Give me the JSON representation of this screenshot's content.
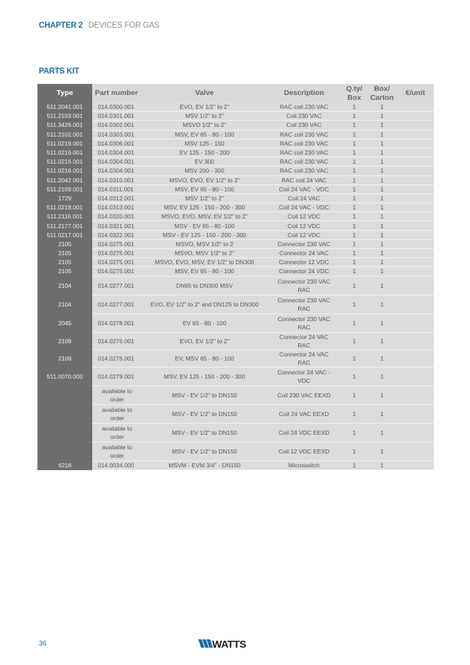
{
  "header": {
    "chapter": "CHAPTER 2",
    "chapter_name": "DEVICES FOR GAS"
  },
  "section_title": "PARTS KIT",
  "table": {
    "columns": [
      "Type",
      "Part number",
      "Valve",
      "Description",
      "Q.ty/ Box",
      "Box/ Carton",
      "€/unit"
    ],
    "rows": [
      [
        "511.2041.001",
        "014.0300.001",
        "EVO, EV 1/2\" to 2\"",
        "RAC coil 230 VAC",
        "1",
        "1",
        ""
      ],
      [
        "511.2103.001",
        "014.0301.001",
        "MSV 1/2\" to 2\"",
        "Coil 230 VAC",
        "1",
        "1",
        ""
      ],
      [
        "511.3426.001",
        "014.0302.001",
        "MSVO 1/2\" to 2\"",
        "Coil 230 VAC",
        "1",
        "1",
        ""
      ],
      [
        "511.2102.001",
        "014.0303.001",
        "MSV, EV 65 - 80 - 100",
        "RAC coil 230 VAC",
        "1",
        "1",
        ""
      ],
      [
        "511.0219.001",
        "014.0306.001",
        "MSV 125 - 150",
        "RAC coil 230 VAC",
        "1",
        "1",
        ""
      ],
      [
        "511.0216.001",
        "014.0304.001",
        "EV 125 - 150 - 200",
        "RAC coil 230 VAC",
        "1",
        "1",
        ""
      ],
      [
        "511.0216.001",
        "014.0304.001",
        "EV 300",
        "RAC coil 230 VAC",
        "1",
        "1",
        ""
      ],
      [
        "511.0216.001",
        "014.0304.001",
        "MSV 200 - 300",
        "RAC coil 230 VAC",
        "1",
        "1",
        ""
      ],
      [
        "511.2042.001",
        "014.0310.001",
        "MSVO, EVO, EV 1/2\" to 2\"",
        "RAC coil 24 VAC",
        "1",
        "1",
        ""
      ],
      [
        "511.2109.001",
        "014.0311.001",
        "MSV, EV 65 - 80 - 100",
        "Coil 24 VAC - VDC",
        "1",
        "1",
        ""
      ],
      [
        "1729",
        "014.0312.001",
        "MSV 1/2\" to 2\"",
        "Coil 24 VAC",
        "1",
        "1",
        ""
      ],
      [
        "511.0218.001",
        "014.0313.001",
        "MSV, EV 125 - 150 - 200 - 300",
        "Coil 24 VAC - VDC",
        "1",
        "1",
        ""
      ],
      [
        "511.2116.001",
        "014.0320.001",
        "MSVO, EVO, MSV, EV 1/2\" to 2\"",
        "Coil 12 VDC",
        "1",
        "1",
        ""
      ],
      [
        "511.2177.001",
        "014.0321.001",
        "MSV - EV 65 - 80 -100",
        "Coil 12 VDC",
        "1",
        "1",
        ""
      ],
      [
        "511.0217.001",
        "014.0322.001",
        "MSV - EV 125 - 150 - 200 - 300",
        "Coil 12 VDC",
        "1",
        "1",
        ""
      ],
      [
        "2105",
        "014.0275.001",
        "MSVO, MSV 1/2\" to 2",
        "Connector 230 VAC",
        "1",
        "1",
        ""
      ],
      [
        "2105",
        "014.0275.001",
        "MSVO, MSV 1/2\" to 2\"",
        "Connector 24 VAC",
        "1",
        "1",
        ""
      ],
      [
        "2105",
        "014.0275.001",
        "MSVO, EVO, MSV, EV 1/2\" to DN300",
        "Connector 12 VDC",
        "1",
        "1",
        ""
      ],
      [
        "2105",
        "014.0275.001",
        "MSV, EV 65 - 80 - 100",
        "Connector 24 VDC",
        "1",
        "1",
        ""
      ],
      [
        "2104",
        "014.0277.001",
        "DN65 to DN300 MSV",
        "Connector 230 VAC RAC",
        "1",
        "1",
        ""
      ],
      [
        "2104",
        "014.0277.001",
        "EVO, EV 1/2\" to 2\" and DN125 to DN300",
        "Connector 230 VAC RAC",
        "1",
        "1",
        ""
      ],
      [
        "2045",
        "014.0278.001",
        "EV 65 - 80 - 100",
        "Connector 230 VAC RAC",
        "1",
        "1",
        ""
      ],
      [
        "2108",
        "014.0276.001",
        "EVO, EV 1/2\" to 2\"",
        "Connector 24 VAC RAC",
        "1",
        "1",
        ""
      ],
      [
        "2108",
        "014.0276.001",
        "EV, MSV 65 - 80 - 100",
        "Connector 24 VAC RAC",
        "1",
        "1",
        ""
      ],
      [
        "511.0070.000",
        "014.0279.001",
        "MSV, EV 125 - 150 - 200 - 300",
        "Connector 24 VAC - VDC",
        "1",
        "1",
        ""
      ],
      [
        "",
        "available to order",
        "MSV - EV 1/2\" to DN150",
        "Coil 230 VAC EEXD",
        "1",
        "1",
        ""
      ],
      [
        "",
        "available to order",
        "MSV - EV 1/2\" to DN150",
        "Coil 24 VAC EEXD",
        "1",
        "1",
        ""
      ],
      [
        "",
        "available to order",
        "MSV - EV 1/2\" to DN150",
        "Coil 24 VDC EEXD",
        "1",
        "1",
        ""
      ],
      [
        "",
        "available to order",
        "MSV - EV 1/2\" to DN150",
        "Coil 12 VDC EEXD",
        "1",
        "1",
        ""
      ],
      [
        "6218",
        "014.0034.000",
        "MSVM - EVM 3/4\" - DN150",
        "Microswitch",
        "1",
        "1",
        ""
      ]
    ]
  },
  "footer": {
    "page_number": "36",
    "logo_text": "WATTS",
    "brand_color": "#1f6fa6"
  }
}
